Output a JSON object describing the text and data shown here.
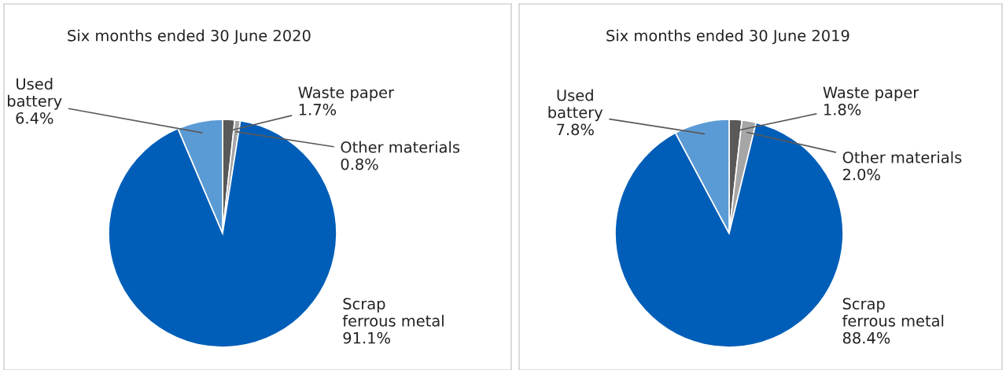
{
  "chart_data": [
    {
      "type": "pie",
      "title": "Six months ended 30 June 2020",
      "categories": [
        "Waste paper",
        "Other materials",
        "Scrap\nferrous metal",
        "Used\nbattery"
      ],
      "values": [
        1.7,
        0.8,
        91.1,
        6.4
      ],
      "value_labels": [
        "1.7%",
        "0.8%",
        "91.1%",
        "6.4%"
      ],
      "colors": [
        "#595959",
        "#a6a6a6",
        "#005eb8",
        "#5b9bd5"
      ]
    },
    {
      "type": "pie",
      "title": "Six months ended 30 June 2019",
      "categories": [
        "Waste paper",
        "Other materials",
        "Scrap\nferrous metal",
        "Used\nbattery"
      ],
      "values": [
        1.8,
        2.0,
        88.4,
        7.8
      ],
      "value_labels": [
        "1.8%",
        "2.0%",
        "88.4%",
        "7.8%"
      ],
      "colors": [
        "#595959",
        "#a6a6a6",
        "#005eb8",
        "#5b9bd5"
      ]
    }
  ]
}
